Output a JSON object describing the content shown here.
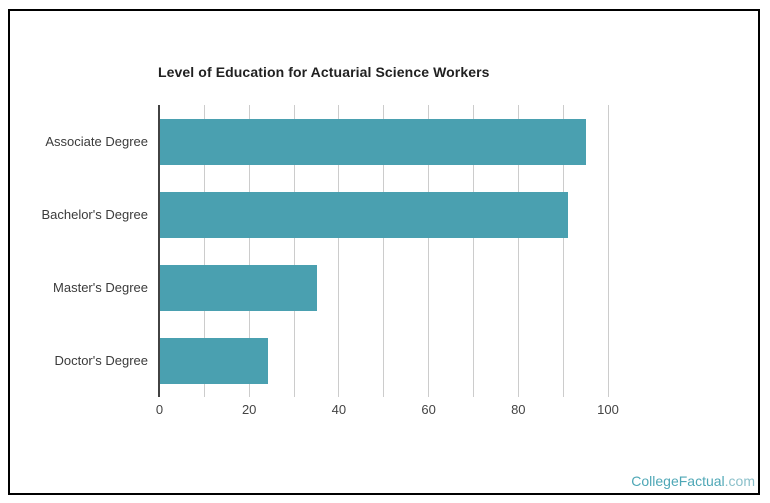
{
  "title": "Level of Education for Actuarial Science Workers",
  "watermark": {
    "brand": "CollegeFactual",
    "domain": ".com"
  },
  "colors": {
    "background": "#ffffff",
    "frame_border": "#000000",
    "bar": "#4aa0b0",
    "axis_line": "#424242",
    "gridline": "#cccccc",
    "title_text": "#212121",
    "category_label": "#3b3b3b",
    "tick_label": "#444444",
    "watermark_brand": "#4ea7b6",
    "watermark_domain": "#8bc0ca"
  },
  "chart_data": {
    "type": "bar",
    "orientation": "horizontal",
    "title": "Level of Education for Actuarial Science Workers",
    "categories": [
      "Associate Degree",
      "Bachelor's Degree",
      "Master's Degree",
      "Doctor's Degree"
    ],
    "values": [
      95,
      91,
      35,
      24
    ],
    "xlabel": "",
    "ylabel": "",
    "xlim": [
      0,
      100
    ],
    "x_tick_labels": [
      0,
      20,
      40,
      60,
      80,
      100
    ],
    "gridline_step": 10,
    "grid": true,
    "legend": "none"
  }
}
